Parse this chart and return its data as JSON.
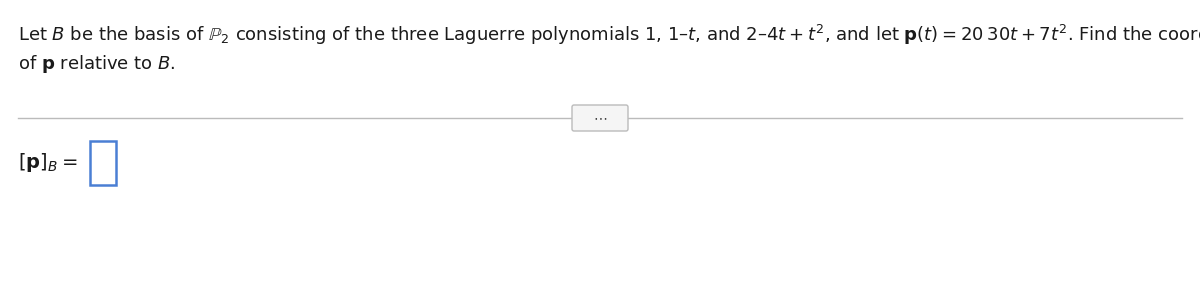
{
  "background_color": "#ffffff",
  "figsize": [
    12.0,
    2.81
  ],
  "dpi": 100,
  "font_size_main": 13.0,
  "text_color": "#1a1a1a",
  "line_color": "#bbbbbb",
  "box_edge_color": "#4a7fd4",
  "dots_box_color": "#f5f5f5",
  "dots_box_edge": "#bbbbbb",
  "line1": "Let $B$ be the basis of $\\mathbb{P}_2$ consisting of the three Laguerre polynomials 1, 1–$t$, and 2–4$t$ + $t^2$, and let $\\mathbf{p}$($t$) = 20 30$t$ + 7$t^2$. Find the coordinate vector",
  "line2": "of $\\mathbf{p}$ relative to $B$.",
  "pB_label": "$[\\mathbf{p}]_B =$"
}
